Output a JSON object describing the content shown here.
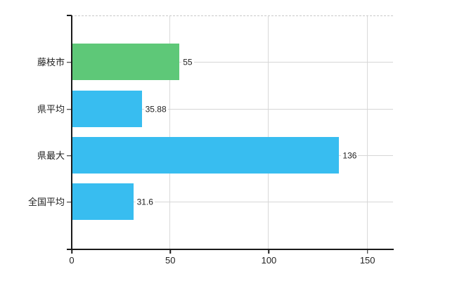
{
  "chart_data": {
    "type": "bar",
    "orientation": "horizontal",
    "title": "",
    "xlabel": "",
    "ylabel": "",
    "categories": [
      "藤枝市",
      "県平均",
      "県最大",
      "全国平均"
    ],
    "values": [
      55,
      35.88,
      136,
      31.6
    ],
    "value_labels": [
      "55",
      "35.88",
      "136",
      "31.6"
    ],
    "bar_colors": [
      "#5ec878",
      "#38bdf0",
      "#38bdf0",
      "#38bdf0"
    ],
    "x_tick_labels": [
      "0",
      "50",
      "100",
      "150"
    ],
    "x_tick_values": [
      0,
      50,
      100,
      150
    ],
    "xlim": [
      0,
      163.3
    ],
    "grid": true,
    "legend_position": "none",
    "background_color": "#ffffff",
    "gridline_color": "#d9d9d9",
    "axis_color": "#1a1a1a",
    "text_color": "#222222"
  }
}
